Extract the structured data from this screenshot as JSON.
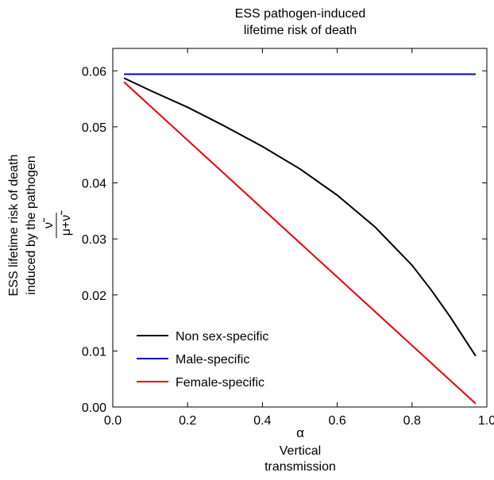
{
  "chart_data": {
    "type": "line",
    "title_lines": [
      "ESS pathogen-induced",
      "lifetime risk of death"
    ],
    "xlabel_symbol": "α",
    "xlabel_lines": [
      "Vertical",
      "transmission"
    ],
    "ylabel_lines": [
      "ESS lifetime risk of death",
      "induced by the pathogen"
    ],
    "ylabel_formula": {
      "numerator": "ν̃",
      "denominator": "μ+ν̃"
    },
    "xlim": [
      0.0,
      1.0
    ],
    "ylim": [
      0.0,
      0.064
    ],
    "xticks": [
      0.0,
      0.2,
      0.4,
      0.6,
      0.8,
      1.0
    ],
    "xtick_labels": [
      "0.0",
      "0.2",
      "0.4",
      "0.6",
      "0.8",
      "1.0"
    ],
    "yticks": [
      0.0,
      0.01,
      0.02,
      0.03,
      0.04,
      0.05,
      0.06
    ],
    "ytick_labels": [
      "0.00",
      "0.01",
      "0.02",
      "0.03",
      "0.04",
      "0.05",
      "0.06"
    ],
    "grid": false,
    "legend_position": "bottom-left",
    "series": [
      {
        "name": "Non sex-specific",
        "color": "#000000",
        "x": [
          0.03,
          0.1,
          0.2,
          0.3,
          0.4,
          0.5,
          0.6,
          0.7,
          0.8,
          0.85,
          0.9,
          0.94,
          0.97
        ],
        "y": [
          0.0587,
          0.0565,
          0.0535,
          0.0501,
          0.0465,
          0.0425,
          0.0378,
          0.0322,
          0.0253,
          0.021,
          0.0163,
          0.0122,
          0.0091
        ]
      },
      {
        "name": "Male-specific",
        "color": "#0000cc",
        "x": [
          0.03,
          0.97
        ],
        "y": [
          0.0594,
          0.0594
        ]
      },
      {
        "name": "Female-specific",
        "color": "#e8000b",
        "x": [
          0.03,
          0.97
        ],
        "y": [
          0.058,
          0.0006
        ]
      }
    ]
  }
}
